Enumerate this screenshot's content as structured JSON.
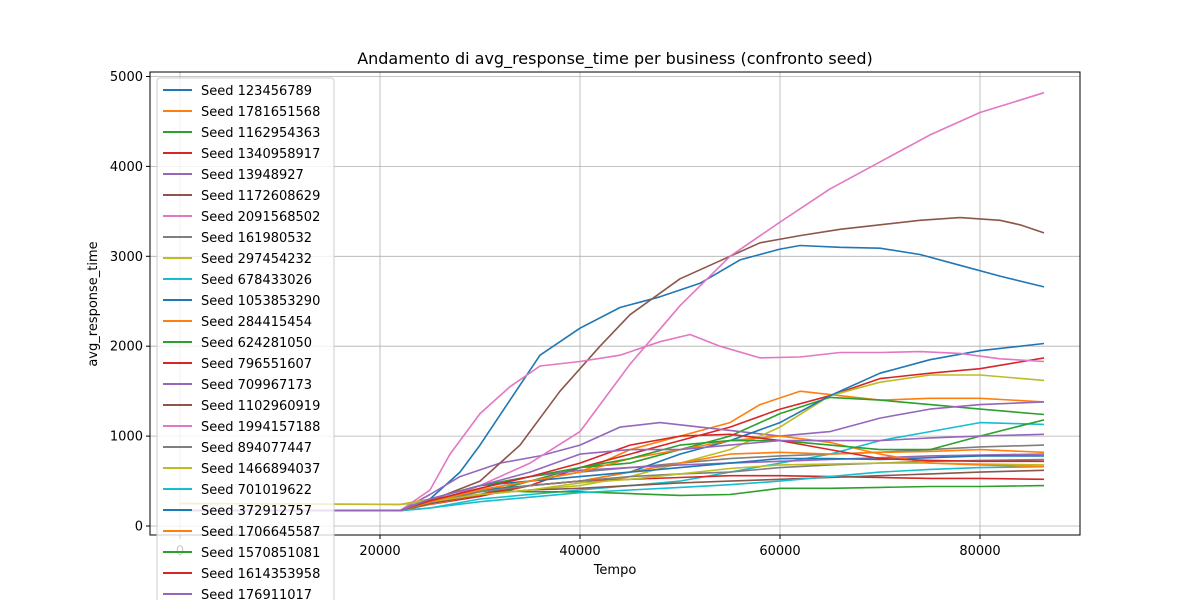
{
  "chart_data": {
    "type": "line",
    "title": "Andamento di avg_response_time per business (confronto seed)",
    "xlabel": "Tempo",
    "ylabel": "avg_response_time",
    "xlim": [
      -3000,
      90000
    ],
    "ylim": [
      -100,
      5050
    ],
    "xticks": [
      0,
      20000,
      40000,
      60000,
      80000
    ],
    "yticks": [
      0,
      1000,
      2000,
      3000,
      4000,
      5000
    ],
    "grid": true,
    "legend_position": "upper-left",
    "series": [
      {
        "name": "Seed 123456789",
        "color": "#1f77b4",
        "x": [
          0,
          22000,
          25000,
          28000,
          30000,
          33000,
          36000,
          40000,
          44000,
          48000,
          52000,
          56000,
          60000,
          62000,
          66000,
          70000,
          74000,
          78000,
          82000,
          86400
        ],
        "y": [
          170,
          170,
          300,
          600,
          900,
          1400,
          1900,
          2200,
          2430,
          2550,
          2700,
          2960,
          3080,
          3120,
          3100,
          3090,
          3020,
          2900,
          2780,
          2660
        ]
      },
      {
        "name": "Seed 1781651568",
        "color": "#ff7f0e",
        "x": [
          0,
          22000,
          25000,
          30000,
          35000,
          40000,
          45000,
          50000,
          55000,
          58000,
          62000,
          66000,
          70000,
          75000,
          80000,
          86400
        ],
        "y": [
          170,
          170,
          250,
          400,
          500,
          600,
          850,
          1000,
          1150,
          1350,
          1500,
          1450,
          1400,
          1420,
          1420,
          1380
        ]
      },
      {
        "name": "Seed 1162954363",
        "color": "#2ca02c",
        "x": [
          0,
          22000,
          25000,
          30000,
          35000,
          40000,
          45000,
          50000,
          55000,
          60000,
          65000,
          70000,
          75000,
          80000,
          86400
        ],
        "y": [
          170,
          170,
          250,
          350,
          500,
          650,
          700,
          850,
          1000,
          1250,
          1430,
          1400,
          1350,
          1300,
          1240
        ]
      },
      {
        "name": "Seed 1340958917",
        "color": "#d62728",
        "x": [
          0,
          22000,
          25000,
          30000,
          35000,
          40000,
          45000,
          50000,
          55000,
          60000,
          65000,
          70000,
          75000,
          80000,
          86400
        ],
        "y": [
          170,
          170,
          240,
          330,
          450,
          650,
          800,
          950,
          1100,
          1300,
          1450,
          1640,
          1700,
          1750,
          1870
        ]
      },
      {
        "name": "Seed 13948927",
        "color": "#9467bd",
        "x": [
          0,
          22000,
          25000,
          28000,
          32000,
          36000,
          40000,
          44000,
          48000,
          52000,
          56000,
          60000,
          65000,
          70000,
          75000,
          80000,
          86400
        ],
        "y": [
          170,
          170,
          350,
          550,
          700,
          780,
          900,
          1100,
          1150,
          1100,
          1050,
          1000,
          1050,
          1200,
          1300,
          1350,
          1380
        ]
      },
      {
        "name": "Seed 1172608629",
        "color": "#8c564b",
        "x": [
          0,
          22000,
          25000,
          30000,
          34000,
          38000,
          42000,
          45000,
          50000,
          54000,
          58000,
          62000,
          66000,
          70000,
          74000,
          78000,
          82000,
          84000,
          86400
        ],
        "y": [
          170,
          170,
          280,
          500,
          900,
          1500,
          2000,
          2350,
          2750,
          2950,
          3150,
          3230,
          3300,
          3350,
          3400,
          3430,
          3400,
          3350,
          3260
        ]
      },
      {
        "name": "Seed 2091568502",
        "color": "#e377c2",
        "x": [
          0,
          22000,
          25000,
          30000,
          35000,
          40000,
          45000,
          50000,
          55000,
          60000,
          65000,
          70000,
          75000,
          80000,
          86400
        ],
        "y": [
          170,
          170,
          250,
          450,
          700,
          1050,
          1800,
          2450,
          3000,
          3380,
          3750,
          4050,
          4350,
          4600,
          4820
        ]
      },
      {
        "name": "Seed 161980532",
        "color": "#7f7f7f",
        "x": [
          0,
          22000,
          25000,
          30000,
          35000,
          40000,
          45000,
          50000,
          55000,
          60000,
          65000,
          70000,
          75000,
          80000,
          86400
        ],
        "y": [
          170,
          170,
          250,
          400,
          500,
          600,
          650,
          700,
          750,
          780,
          800,
          820,
          850,
          880,
          900
        ]
      },
      {
        "name": "Seed 297454232",
        "color": "#bcbd22",
        "x": [
          0,
          22000,
          25000,
          30000,
          35000,
          40000,
          45000,
          50000,
          55000,
          60000,
          65000,
          70000,
          75000,
          80000,
          86400
        ],
        "y": [
          250,
          240,
          300,
          350,
          400,
          450,
          550,
          700,
          850,
          1100,
          1450,
          1600,
          1680,
          1680,
          1620
        ]
      },
      {
        "name": "Seed 678433026",
        "color": "#17becf",
        "x": [
          0,
          22000,
          25000,
          30000,
          35000,
          40000,
          45000,
          50000,
          55000,
          60000,
          65000,
          70000,
          75000,
          80000,
          86400
        ],
        "y": [
          170,
          170,
          200,
          300,
          350,
          400,
          450,
          500,
          600,
          700,
          800,
          950,
          1050,
          1150,
          1130
        ]
      },
      {
        "name": "Seed 1053853290",
        "color": "#1f77b4",
        "x": [
          0,
          22000,
          25000,
          30000,
          35000,
          40000,
          45000,
          50000,
          55000,
          60000,
          65000,
          70000,
          75000,
          80000,
          86400
        ],
        "y": [
          170,
          170,
          250,
          400,
          450,
          500,
          600,
          800,
          950,
          1150,
          1450,
          1700,
          1850,
          1950,
          2030
        ]
      },
      {
        "name": "Seed 284415454",
        "color": "#ff7f0e",
        "x": [
          0,
          22000,
          25000,
          30000,
          35000,
          40000,
          45000,
          50000,
          55000,
          60000,
          65000,
          70000,
          75000,
          80000,
          86400
        ],
        "y": [
          170,
          170,
          240,
          350,
          450,
          500,
          600,
          700,
          800,
          820,
          800,
          820,
          830,
          850,
          820
        ]
      },
      {
        "name": "Seed 624281050",
        "color": "#2ca02c",
        "x": [
          0,
          22000,
          25000,
          30000,
          35000,
          40000,
          45000,
          50000,
          55000,
          60000,
          65000,
          70000,
          75000,
          80000,
          86400
        ],
        "y": [
          170,
          170,
          250,
          400,
          380,
          380,
          360,
          340,
          350,
          420,
          420,
          430,
          440,
          440,
          450
        ]
      },
      {
        "name": "Seed 796551607",
        "color": "#d62728",
        "x": [
          0,
          22000,
          25000,
          30000,
          35000,
          40000,
          45000,
          50000,
          55000,
          60000,
          65000,
          70000,
          75000,
          80000,
          86400
        ],
        "y": [
          170,
          170,
          250,
          350,
          450,
          500,
          520,
          540,
          560,
          560,
          550,
          540,
          530,
          530,
          520
        ]
      },
      {
        "name": "Seed 709967173",
        "color": "#9467bd",
        "x": [
          0,
          22000,
          25000,
          30000,
          35000,
          40000,
          45000,
          50000,
          55000,
          60000,
          65000,
          70000,
          75000,
          80000,
          86400
        ],
        "y": [
          170,
          170,
          300,
          450,
          550,
          620,
          650,
          680,
          700,
          720,
          740,
          760,
          780,
          790,
          800
        ]
      },
      {
        "name": "Seed 1102960919",
        "color": "#8c564b",
        "x": [
          0,
          22000,
          25000,
          30000,
          35000,
          40000,
          45000,
          50000,
          55000,
          60000,
          65000,
          70000,
          75000,
          80000,
          86400
        ],
        "y": [
          170,
          170,
          250,
          350,
          400,
          420,
          450,
          480,
          500,
          520,
          540,
          560,
          580,
          600,
          620
        ]
      },
      {
        "name": "Seed 1994157188",
        "color": "#e377c2",
        "x": [
          0,
          22000,
          25000,
          27000,
          30000,
          33000,
          36000,
          40000,
          44000,
          48000,
          51000,
          54000,
          58000,
          62000,
          66000,
          70000,
          74000,
          78000,
          82000,
          86400
        ],
        "y": [
          170,
          170,
          400,
          800,
          1250,
          1550,
          1780,
          1830,
          1900,
          2050,
          2130,
          2000,
          1870,
          1880,
          1930,
          1930,
          1940,
          1920,
          1860,
          1830
        ]
      },
      {
        "name": "Seed 894077447",
        "color": "#7f7f7f",
        "x": [
          0,
          22000,
          25000,
          30000,
          35000,
          40000,
          45000,
          50000,
          55000,
          60000,
          65000,
          70000,
          75000,
          80000,
          86400
        ],
        "y": [
          170,
          170,
          260,
          380,
          450,
          500,
          550,
          580,
          600,
          650,
          680,
          700,
          720,
          730,
          740
        ]
      },
      {
        "name": "Seed 1466894037",
        "color": "#bcbd22",
        "x": [
          0,
          22000,
          25000,
          30000,
          35000,
          40000,
          45000,
          50000,
          55000,
          60000,
          65000,
          70000,
          75000,
          80000,
          86400
        ],
        "y": [
          250,
          240,
          270,
          350,
          400,
          480,
          520,
          580,
          640,
          680,
          690,
          700,
          700,
          690,
          680
        ]
      },
      {
        "name": "Seed 701019622",
        "color": "#17becf",
        "x": [
          0,
          22000,
          25000,
          30000,
          35000,
          40000,
          45000,
          50000,
          55000,
          60000,
          65000,
          70000,
          75000,
          80000,
          86400
        ],
        "y": [
          170,
          170,
          200,
          270,
          320,
          370,
          400,
          430,
          460,
          500,
          550,
          600,
          630,
          650,
          660
        ]
      },
      {
        "name": "Seed 372912757",
        "color": "#1f77b4",
        "x": [
          0,
          22000,
          25000,
          30000,
          35000,
          40000,
          45000,
          50000,
          55000,
          60000,
          65000,
          70000,
          75000,
          80000,
          86400
        ],
        "y": [
          170,
          170,
          300,
          450,
          500,
          550,
          600,
          650,
          700,
          750,
          750,
          740,
          760,
          780,
          780
        ]
      },
      {
        "name": "Seed 1706645587",
        "color": "#ff7f0e",
        "x": [
          0,
          22000,
          25000,
          30000,
          35000,
          40000,
          45000,
          50000,
          55000,
          60000,
          65000,
          70000,
          75000,
          80000,
          86400
        ],
        "y": [
          170,
          170,
          270,
          400,
          500,
          600,
          750,
          850,
          950,
          1000,
          930,
          800,
          700,
          680,
          660
        ]
      },
      {
        "name": "Seed 1570851081",
        "color": "#2ca02c",
        "x": [
          0,
          22000,
          25000,
          30000,
          35000,
          40000,
          45000,
          50000,
          55000,
          60000,
          65000,
          70000,
          75000,
          80000,
          86400
        ],
        "y": [
          170,
          170,
          300,
          450,
          550,
          650,
          750,
          900,
          950,
          950,
          900,
          850,
          850,
          1000,
          1180
        ]
      },
      {
        "name": "Seed 1614353958",
        "color": "#d62728",
        "x": [
          0,
          22000,
          25000,
          30000,
          35000,
          40000,
          45000,
          50000,
          55000,
          60000,
          65000,
          70000,
          75000,
          80000,
          86400
        ],
        "y": [
          170,
          170,
          280,
          420,
          550,
          700,
          900,
          1000,
          1020,
          950,
          850,
          750,
          730,
          720,
          720
        ]
      },
      {
        "name": "Seed 176911017",
        "color": "#9467bd",
        "x": [
          0,
          22000,
          25000,
          30000,
          35000,
          40000,
          45000,
          50000,
          55000,
          60000,
          65000,
          70000,
          75000,
          80000,
          86400
        ],
        "y": [
          170,
          170,
          300,
          450,
          600,
          800,
          850,
          850,
          900,
          950,
          950,
          950,
          980,
          1000,
          1020
        ]
      }
    ]
  }
}
